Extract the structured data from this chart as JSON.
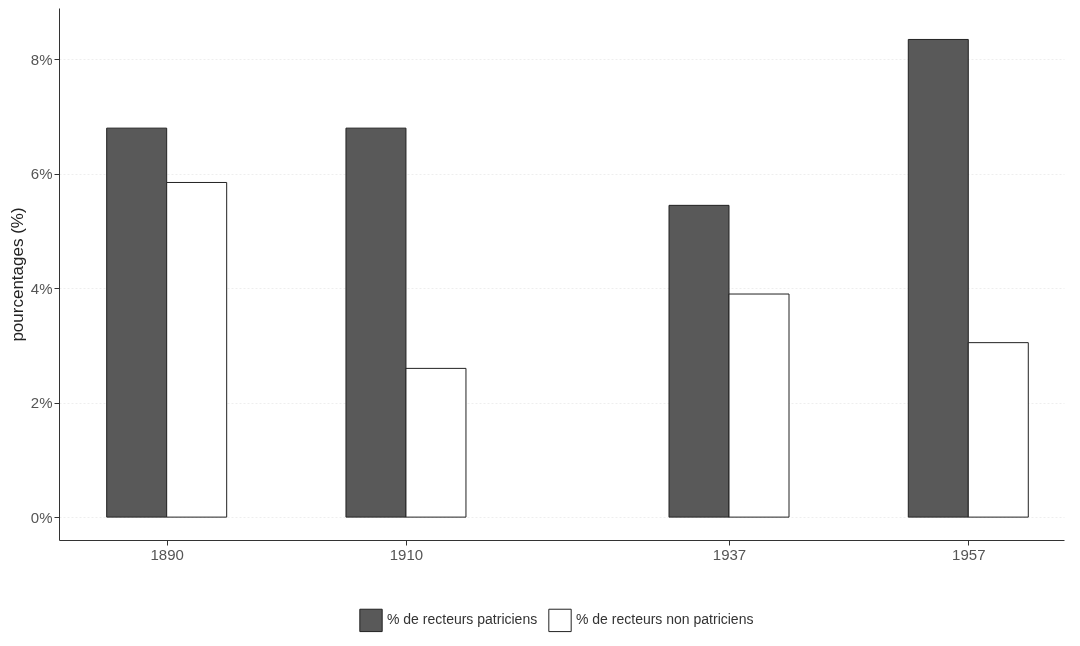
{
  "chart_data": {
    "type": "bar",
    "ylabel": "pourcentages (%)",
    "x": [
      1890,
      1910,
      1937,
      1957
    ],
    "xlim": [
      1881,
      1965
    ],
    "xticks": [
      1890,
      1910,
      1937,
      1957
    ],
    "ylim": [
      -0.4,
      8.9
    ],
    "yticks": [
      {
        "value": 0,
        "label": "0%"
      },
      {
        "value": 2,
        "label": "2%"
      },
      {
        "value": 4,
        "label": "4%"
      },
      {
        "value": 6,
        "label": "6%"
      },
      {
        "value": 8,
        "label": "8%"
      }
    ],
    "series": [
      {
        "name": "% de recteurs patriciens",
        "color": "#595959",
        "values": [
          6.8,
          6.8,
          5.45,
          8.35
        ]
      },
      {
        "name": "% de recteurs non patriciens",
        "color": "#ffffff",
        "values": [
          5.85,
          2.6,
          3.9,
          3.05
        ]
      }
    ],
    "grid": "y",
    "legend": "bottom"
  }
}
